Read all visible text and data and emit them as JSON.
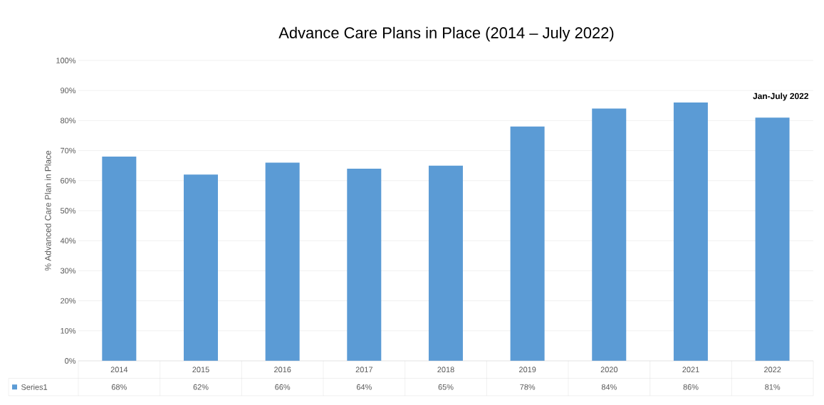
{
  "chart_data": {
    "type": "bar",
    "title": "Advance Care Plans in Place (2014 – July 2022)",
    "ylabel": "% Advanced Care Plan in Place",
    "categories": [
      "2014",
      "2015",
      "2016",
      "2017",
      "2018",
      "2019",
      "2020",
      "2021",
      "2022"
    ],
    "series": [
      {
        "name": "Series1",
        "color": "#5b9bd5",
        "values": [
          68,
          62,
          66,
          64,
          65,
          78,
          84,
          86,
          81
        ],
        "value_labels": [
          "68%",
          "62%",
          "66%",
          "64%",
          "65%",
          "78%",
          "84%",
          "86%",
          "81%"
        ]
      }
    ],
    "ylim": [
      0,
      100
    ],
    "yticks": [
      {
        "value": 0,
        "label": "0%"
      },
      {
        "value": 10,
        "label": "10%"
      },
      {
        "value": 20,
        "label": "20%"
      },
      {
        "value": 30,
        "label": "30%"
      },
      {
        "value": 40,
        "label": "40%"
      },
      {
        "value": 50,
        "label": "50%"
      },
      {
        "value": 60,
        "label": "60%"
      },
      {
        "value": 70,
        "label": "70%"
      },
      {
        "value": 80,
        "label": "80%"
      },
      {
        "value": 90,
        "label": "90%"
      },
      {
        "value": 100,
        "label": "100%"
      }
    ],
    "grid": "y",
    "annotations": [
      "Jan-July 2022"
    ]
  }
}
